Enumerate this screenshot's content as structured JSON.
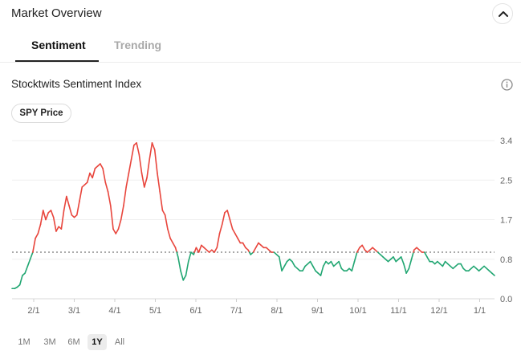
{
  "header": {
    "title": "Market Overview"
  },
  "tabs": [
    {
      "label": "Sentiment"
    },
    {
      "label": "Trending"
    }
  ],
  "section": {
    "title": "Stocktwits Sentiment Index"
  },
  "toggle": {
    "spy_label": "SPY Price"
  },
  "colors": {
    "above": "#e8453c",
    "below": "#21a672",
    "reference": "#555555"
  },
  "ranges": [
    "1M",
    "3M",
    "6M",
    "1Y",
    "All"
  ],
  "active_range": "1Y",
  "chart_data": {
    "type": "line",
    "y_ticks": [
      "0.0",
      "0.8",
      "1.7",
      "2.5",
      "3.4"
    ],
    "ylim": [
      0,
      3.4
    ],
    "reference_value": 1.0,
    "x_ticks": [
      "2/1",
      "3/1",
      "4/1",
      "5/1",
      "6/1",
      "7/1",
      "8/1",
      "9/1",
      "10/1",
      "11/1",
      "12/1",
      "1/1"
    ],
    "grid": "horizontal",
    "series": [
      {
        "values": [
          0.22,
          0.22,
          0.25,
          0.3,
          0.5,
          0.55,
          0.7,
          0.85,
          1.0,
          1.3,
          1.4,
          1.6,
          1.9,
          1.7,
          1.85,
          1.9,
          1.75,
          1.45,
          1.55,
          1.5,
          1.9,
          2.2,
          2.0,
          1.8,
          1.75,
          1.8,
          2.1,
          2.4,
          2.45,
          2.5,
          2.7,
          2.6,
          2.8,
          2.85,
          2.9,
          2.8,
          2.5,
          2.3,
          2.0,
          1.5,
          1.4,
          1.5,
          1.7,
          2.0,
          2.4,
          2.7,
          3.0,
          3.3,
          3.35,
          3.1,
          2.7,
          2.4,
          2.6,
          3.0,
          3.35,
          3.2,
          2.7,
          2.3,
          1.9,
          1.8,
          1.5,
          1.3,
          1.2,
          1.1,
          0.9,
          0.6,
          0.4,
          0.5,
          0.8,
          1.0,
          0.95,
          1.1,
          1.0,
          1.15,
          1.1,
          1.05,
          1.0,
          1.05,
          1.0,
          1.1,
          1.4,
          1.6,
          1.85,
          1.9,
          1.7,
          1.5,
          1.4,
          1.3,
          1.2,
          1.2,
          1.1,
          1.05,
          0.95,
          1.0,
          1.1,
          1.2,
          1.15,
          1.1,
          1.1,
          1.05,
          1.0,
          1.0,
          0.95,
          0.9,
          0.6,
          0.7,
          0.8,
          0.85,
          0.8,
          0.7,
          0.65,
          0.6,
          0.6,
          0.7,
          0.75,
          0.8,
          0.7,
          0.6,
          0.55,
          0.5,
          0.7,
          0.8,
          0.75,
          0.8,
          0.7,
          0.75,
          0.8,
          0.65,
          0.6,
          0.6,
          0.65,
          0.6,
          0.8,
          1.0,
          1.1,
          1.15,
          1.05,
          1.0,
          1.05,
          1.1,
          1.05,
          1.0,
          0.95,
          0.9,
          0.85,
          0.8,
          0.85,
          0.9,
          0.8,
          0.85,
          0.9,
          0.75,
          0.55,
          0.65,
          0.85,
          1.05,
          1.1,
          1.05,
          1.0,
          1.0,
          0.9,
          0.8,
          0.8,
          0.75,
          0.8,
          0.75,
          0.7,
          0.8,
          0.75,
          0.7,
          0.65,
          0.7,
          0.75,
          0.75,
          0.65,
          0.6,
          0.6,
          0.65,
          0.7,
          0.65,
          0.6,
          0.65,
          0.7,
          0.65,
          0.6,
          0.55,
          0.5
        ]
      }
    ]
  }
}
